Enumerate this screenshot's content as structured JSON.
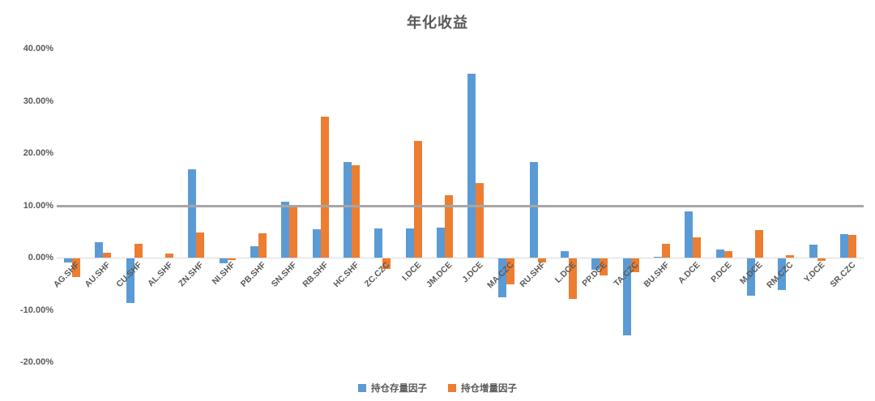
{
  "chart_data": {
    "type": "bar",
    "title": "年化收益",
    "categories": [
      "AG.SHF",
      "AU.SHF",
      "CU.SHF",
      "AL.SHF",
      "ZN.SHF",
      "NI.SHF",
      "PB.SHF",
      "SN.SHF",
      "RB.SHF",
      "HC.SHF",
      "ZC.CZC",
      "I.DCE",
      "JM.DCE",
      "J.DCE",
      "MA.CZC",
      "RU.SHF",
      "L.DCE",
      "PP.DCE",
      "TA.CZC",
      "BU.SHF",
      "A.DCE",
      "P.DCE",
      "M.DCE",
      "RM.CZC",
      "Y.DCE",
      "SR.CZC"
    ],
    "series": [
      {
        "name": "持仓存量因子",
        "color": "#5B9BD5",
        "values": [
          -0.7,
          3.0,
          -8.5,
          0.0,
          16.9,
          -0.9,
          2.1,
          10.7,
          5.5,
          18.3,
          5.6,
          5.6,
          5.8,
          35.2,
          -7.4,
          18.3,
          1.3,
          -2.2,
          -14.8,
          0.2,
          8.9,
          1.6,
          -7.2,
          -6.1,
          2.5,
          4.5
        ]
      },
      {
        "name": "持仓增量因子",
        "color": "#ED7D31",
        "values": [
          -3.5,
          1.0,
          2.6,
          0.8,
          4.8,
          -0.3,
          4.7,
          10.0,
          26.9,
          17.7,
          -2.0,
          22.3,
          12.0,
          14.2,
          -4.9,
          -0.7,
          -7.7,
          -3.3,
          -2.7,
          2.6,
          3.8,
          1.3,
          5.3,
          0.5,
          -0.5,
          4.3
        ]
      }
    ],
    "values_unit": "percent",
    "ylim": [
      -20,
      40
    ],
    "y_ticks": [
      {
        "value": 40,
        "label": "40.00%"
      },
      {
        "value": 30,
        "label": "30.00%"
      },
      {
        "value": 20,
        "label": "20.00%"
      },
      {
        "value": 10,
        "label": "10.00%"
      },
      {
        "value": 0,
        "label": "0.00%"
      },
      {
        "value": -10,
        "label": "-10.00%"
      },
      {
        "value": -20,
        "label": "-20.00%"
      }
    ],
    "ref_line": {
      "value": 10,
      "color": "#A6A6A6"
    },
    "axis_line_color": "#D9D9D9",
    "text_color": "#595959",
    "grid": false,
    "legend_position": "bottom"
  }
}
